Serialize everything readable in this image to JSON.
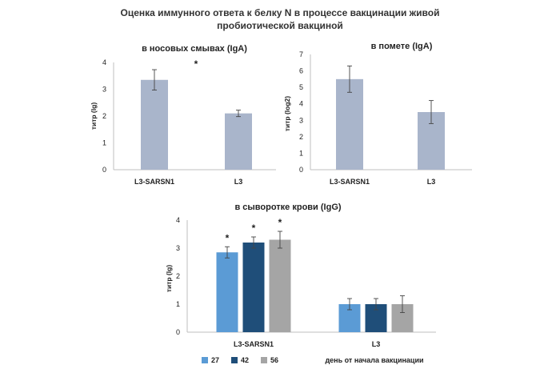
{
  "figure": {
    "title_line1": "Оценка  иммунного ответа к белку N в процессе вакцинации живой",
    "title_line2": "пробиотической вакциной"
  },
  "chart_data": [
    {
      "type": "bar",
      "title": "в носовых смывах (IgA)",
      "ylabel": "титр (lg)",
      "xlabel": "",
      "categories": [
        "L3-SARSN1",
        "L3"
      ],
      "values": [
        3.35,
        2.1
      ],
      "errors": [
        0.38,
        0.12
      ],
      "ylim": [
        0,
        4
      ],
      "yticks": [
        "0",
        "1",
        "2",
        "3",
        "4"
      ],
      "annotations": [
        {
          "text": "*",
          "category": "L3-SARSN1"
        }
      ],
      "color": "#a9b5cb"
    },
    {
      "type": "bar",
      "title": "в помете (IgA)",
      "ylabel": "титр (log2)",
      "xlabel": "",
      "categories": [
        "L3-SARSN1",
        "L3"
      ],
      "values": [
        5.5,
        3.5
      ],
      "errors": [
        0.8,
        0.7
      ],
      "ylim": [
        0,
        7
      ],
      "yticks": [
        "0",
        "1",
        "2",
        "3",
        "4",
        "5",
        "6",
        "7"
      ],
      "color": "#a9b5cb"
    },
    {
      "type": "bar",
      "title": "в сыворотке крови (IgG)",
      "ylabel": "титр (lg)",
      "xlabel": "день от начала вакцинации",
      "categories": [
        "L3-SARSN1",
        "L3"
      ],
      "series": [
        {
          "name": "27",
          "values": [
            2.85,
            1.0
          ],
          "errors": [
            0.2,
            0.2
          ],
          "color": "#5b9bd5",
          "stars": [
            "*",
            ""
          ]
        },
        {
          "name": "42",
          "values": [
            3.2,
            1.0
          ],
          "errors": [
            0.2,
            0.2
          ],
          "color": "#1f4e79",
          "stars": [
            "*",
            ""
          ]
        },
        {
          "name": "56",
          "values": [
            3.3,
            1.0
          ],
          "errors": [
            0.3,
            0.3
          ],
          "color": "#a5a5a5",
          "stars": [
            "*",
            ""
          ]
        }
      ],
      "ylim": [
        0,
        4
      ],
      "yticks": [
        "0",
        "1",
        "2",
        "3",
        "4"
      ],
      "legend_position": "bottom"
    }
  ]
}
